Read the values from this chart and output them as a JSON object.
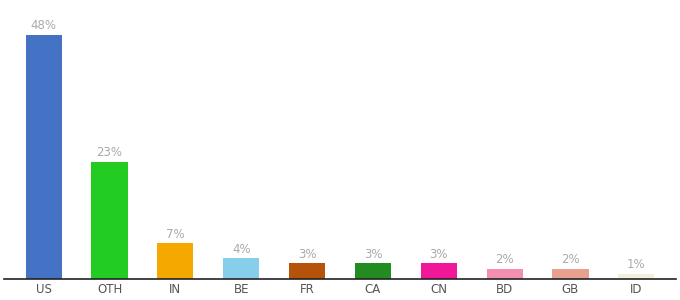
{
  "categories": [
    "US",
    "OTH",
    "IN",
    "BE",
    "FR",
    "CA",
    "CN",
    "BD",
    "GB",
    "ID"
  ],
  "values": [
    48,
    23,
    7,
    4,
    3,
    3,
    3,
    2,
    2,
    1
  ],
  "bar_colors": [
    "#4472c4",
    "#22cc22",
    "#f5a800",
    "#87ceeb",
    "#b5530a",
    "#228b22",
    "#f01898",
    "#f48fb1",
    "#e8a090",
    "#f5f0dc"
  ],
  "ylim": [
    0,
    54
  ],
  "label_fontsize": 8.5,
  "tick_fontsize": 8.5,
  "background_color": "#ffffff",
  "label_color": "#aaaaaa",
  "bar_width": 0.55
}
